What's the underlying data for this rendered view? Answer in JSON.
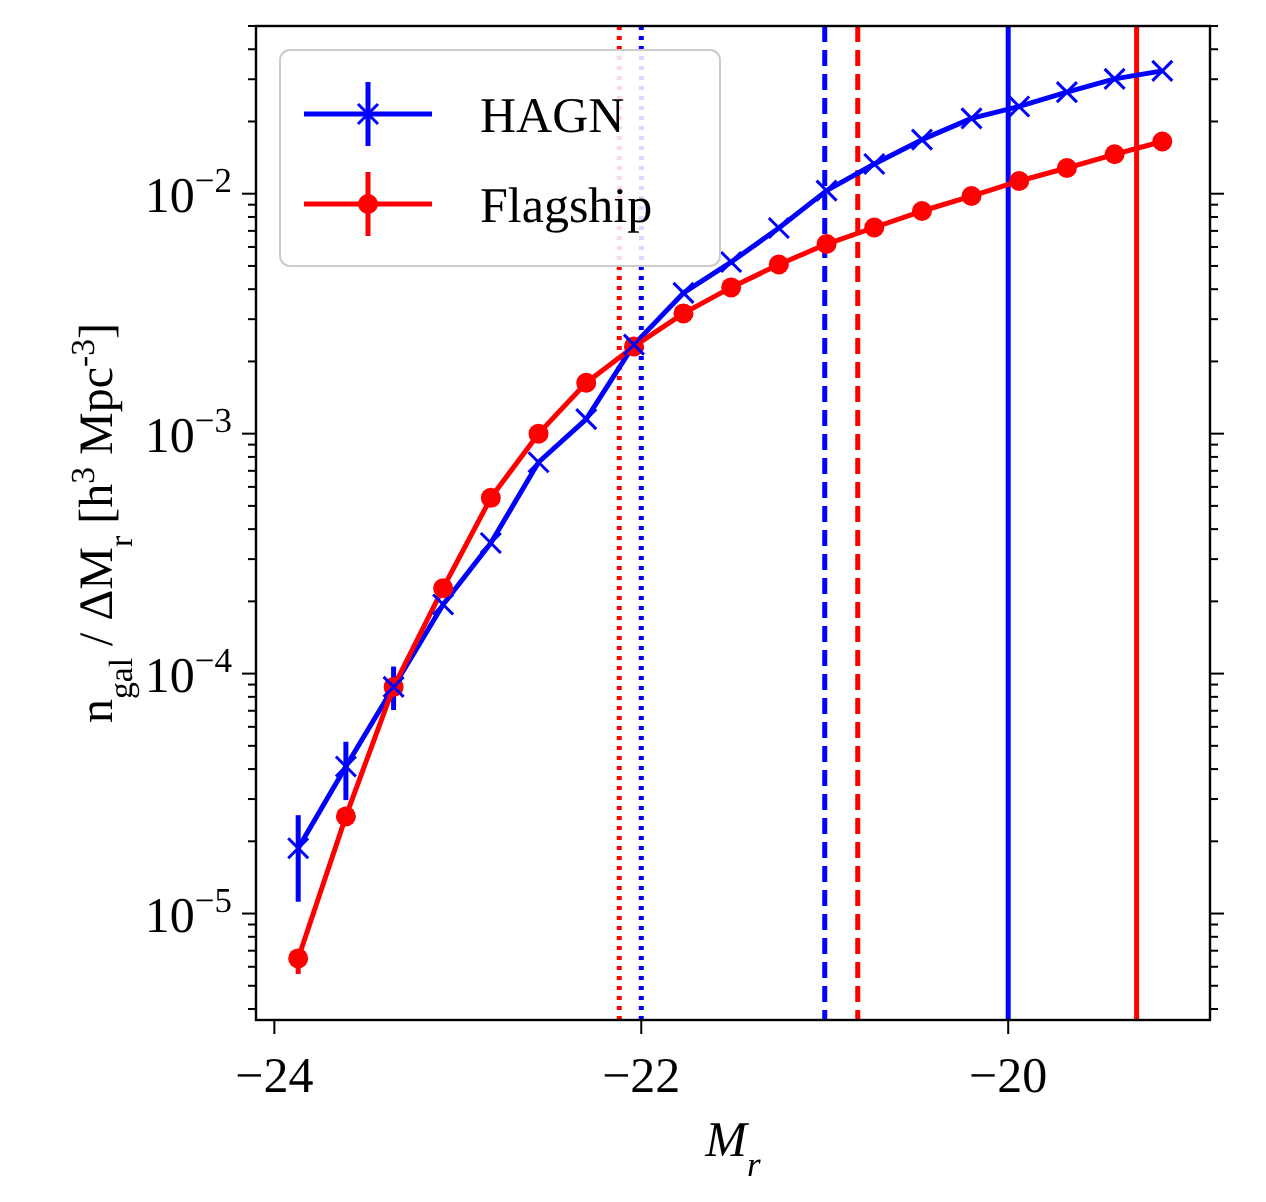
{
  "chart_data": {
    "type": "line",
    "xlabel": "M$_{r}$",
    "ylabel": "n$_{gal}$ / ΔM$_{r}$ [h$^{3}$ Mpc$^{-3}$]",
    "x": [
      -23.87,
      -23.61,
      -23.35,
      -23.08,
      -22.82,
      -22.56,
      -22.3,
      -22.04,
      -21.77,
      -21.51,
      -21.25,
      -20.99,
      -20.73,
      -20.47,
      -20.2,
      -19.94,
      -19.68,
      -19.42,
      -19.16
    ],
    "series": [
      {
        "name": "HAGN",
        "color": "#0000ff",
        "marker": "cross",
        "values": [
          1.87e-05,
          4.1e-05,
          8.8e-05,
          0.000194,
          0.00035,
          0.00076,
          0.00115,
          0.00235,
          0.00386,
          0.00519,
          0.0072,
          0.0103,
          0.0133,
          0.0168,
          0.0206,
          0.0231,
          0.0265,
          0.0301,
          0.0325
        ],
        "errors": [
          [
            1.12e-05,
            2.57e-05
          ],
          [
            2.97e-05,
            5.2e-05
          ],
          [
            7.05e-05,
            0.000107
          ],
          null,
          null,
          null,
          null,
          null,
          null,
          null,
          null,
          null,
          null,
          null,
          null,
          null,
          null,
          null,
          null
        ]
      },
      {
        "name": "Flagship",
        "color": "#ff0000",
        "marker": "circle",
        "values": [
          6.5e-06,
          2.54e-05,
          8.8e-05,
          0.000227,
          0.00054,
          0.001,
          0.00163,
          0.00231,
          0.00317,
          0.00407,
          0.00507,
          0.00617,
          0.00723,
          0.00847,
          0.00978,
          0.0113,
          0.0128,
          0.0146,
          0.0165
        ],
        "errors": [
          [
            5.6e-06,
            7.1e-06
          ],
          null,
          null,
          null,
          null,
          null,
          null,
          null,
          null,
          null,
          null,
          null,
          null,
          null,
          null,
          null,
          null,
          null,
          null
        ]
      }
    ],
    "log": "y",
    "xlim": [
      -24.1,
      -18.9
    ],
    "xticks": [
      {
        "value": -24,
        "label": "−24"
      },
      {
        "value": -22,
        "label": "−22"
      },
      {
        "value": -20,
        "label": "−20"
      }
    ],
    "ylim": [
      3.6e-06,
      0.05
    ],
    "yticks": [
      {
        "value": 4e-06,
        "label": null
      },
      {
        "value": 5e-06,
        "label": null
      },
      {
        "value": 6e-06,
        "label": null
      },
      {
        "value": 7e-06,
        "label": null
      },
      {
        "value": 8e-06,
        "label": null
      },
      {
        "value": 9e-06,
        "label": null
      },
      {
        "value": 1e-05,
        "label": "10$^{−5}$"
      },
      {
        "value": 2e-05,
        "label": null
      },
      {
        "value": 3e-05,
        "label": null
      },
      {
        "value": 4e-05,
        "label": null
      },
      {
        "value": 5e-05,
        "label": null
      },
      {
        "value": 6e-05,
        "label": null
      },
      {
        "value": 7e-05,
        "label": null
      },
      {
        "value": 8e-05,
        "label": null
      },
      {
        "value": 9e-05,
        "label": null
      },
      {
        "value": 0.0001,
        "label": "10$^{−4}$"
      },
      {
        "value": 0.0002,
        "label": null
      },
      {
        "value": 0.0003,
        "label": null
      },
      {
        "value": 0.0004,
        "label": null
      },
      {
        "value": 0.0005,
        "label": null
      },
      {
        "value": 0.0006,
        "label": null
      },
      {
        "value": 0.0007,
        "label": null
      },
      {
        "value": 0.0008,
        "label": null
      },
      {
        "value": 0.0009,
        "label": null
      },
      {
        "value": 0.001,
        "label": "10$^{−3}$"
      },
      {
        "value": 0.002,
        "label": null
      },
      {
        "value": 0.003,
        "label": null
      },
      {
        "value": 0.004,
        "label": null
      },
      {
        "value": 0.005,
        "label": null
      },
      {
        "value": 0.006,
        "label": null
      },
      {
        "value": 0.007,
        "label": null
      },
      {
        "value": 0.008,
        "label": null
      },
      {
        "value": 0.009,
        "label": null
      },
      {
        "value": 0.01,
        "label": "10$^{−2}$"
      },
      {
        "value": 0.02,
        "label": null
      },
      {
        "value": 0.03,
        "label": null
      },
      {
        "value": 0.04,
        "label": null
      },
      {
        "value": 0.05,
        "label": null
      }
    ],
    "ref_lines": [
      {
        "axis": "x",
        "value": -22.12,
        "color": "#ff0000",
        "line_style": "dotted"
      },
      {
        "axis": "x",
        "value": -22.0,
        "color": "#0000ff",
        "line_style": "dotted"
      },
      {
        "axis": "x",
        "value": -21.0,
        "color": "#0000ff",
        "line_style": "dashed"
      },
      {
        "axis": "x",
        "value": -20.82,
        "color": "#ff0000",
        "line_style": "dashed"
      },
      {
        "axis": "x",
        "value": -20.0,
        "color": "#0000ff",
        "line_style": "solid"
      },
      {
        "axis": "x",
        "value": -19.3,
        "color": "#ff0000",
        "line_style": "solid"
      }
    ],
    "grid": false,
    "legend": "top left",
    "line_style": "solid"
  }
}
